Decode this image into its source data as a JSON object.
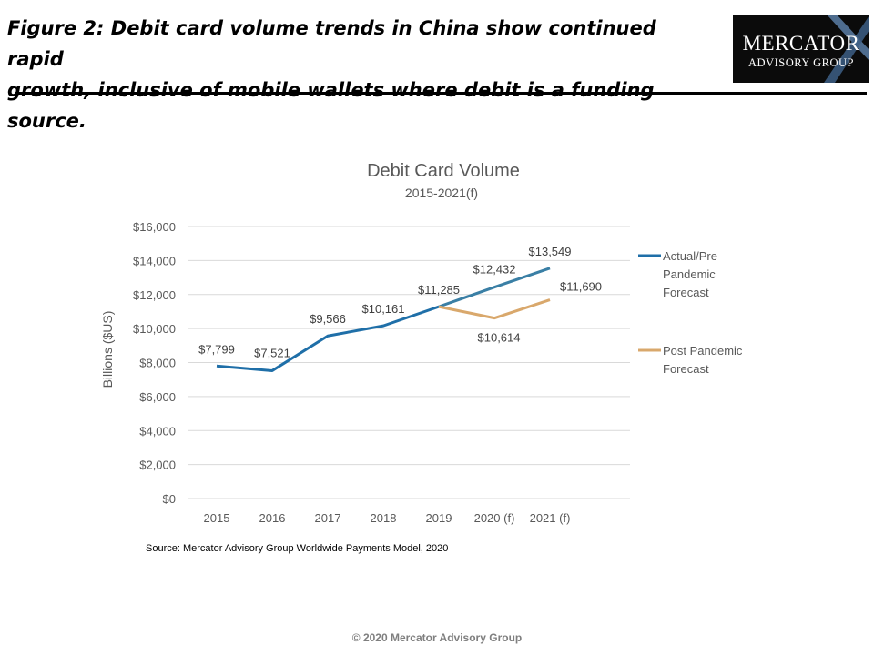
{
  "figure": {
    "title_line1": "Figure 2: Debit card volume trends in China show continued rapid",
    "title_line2": "growth, inclusive of mobile wallets where debit is a funding source."
  },
  "logo": {
    "line1": "Mercator",
    "line2": "Advisory Group"
  },
  "chart_data": {
    "type": "line",
    "title": "Debit Card Volume",
    "subtitle": "2015-2021(f)",
    "xlabel": "",
    "ylabel": "Billions ($US)",
    "categories": [
      "2015",
      "2016",
      "2017",
      "2018",
      "2019",
      "2020 (f)",
      "2021 (f)"
    ],
    "ylim": [
      0,
      16000
    ],
    "yticks": [
      "$0",
      "$2,000",
      "$4,000",
      "$6,000",
      "$8,000",
      "$10,000",
      "$12,000",
      "$14,000",
      "$16,000"
    ],
    "grid": true,
    "legend_position": "right",
    "series": [
      {
        "name": "Actual/Pre Pandemic Forecast",
        "legend_lines": [
          "Actual/Pre",
          "Pandemic",
          "Forecast"
        ],
        "values": [
          7799,
          7521,
          9566,
          10161,
          11285,
          12432,
          13549
        ],
        "labels": [
          "$7,799",
          "$7,521",
          "$9,566",
          "$10,161",
          "$11,285",
          "$12,432",
          "$13,549"
        ],
        "color": "#1f6fa8",
        "forecast_color": "#3a7fa5"
      },
      {
        "name": "Post Pandemic Forecast",
        "legend_lines": [
          "Post Pandemic",
          "Forecast"
        ],
        "values": [
          null,
          null,
          null,
          null,
          11285,
          10614,
          11690
        ],
        "labels": [
          null,
          null,
          null,
          null,
          null,
          "$10,614",
          "$11,690"
        ],
        "color": "#d9a86c"
      }
    ]
  },
  "source": "Source: Mercator Advisory Group Worldwide Payments Model, 2020",
  "copyright": "© 2020 Mercator Advisory Group"
}
